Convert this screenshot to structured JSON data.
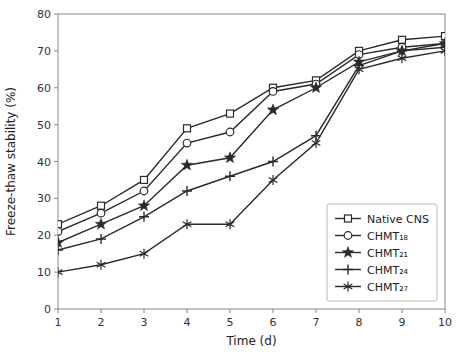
{
  "chart_data": {
    "type": "line",
    "x": [
      1,
      2,
      3,
      4,
      5,
      6,
      7,
      8,
      9,
      10
    ],
    "series": [
      {
        "name": "Native CNS",
        "color": "#2a2a2a",
        "marker": "square",
        "values": [
          23,
          28,
          35,
          49,
          53,
          60,
          62,
          70,
          73,
          74
        ]
      },
      {
        "name": "CHMT₁₈",
        "color": "#2a2a2a",
        "marker": "circle",
        "values": [
          21,
          26,
          32,
          45,
          48,
          59,
          61,
          69,
          71,
          72
        ]
      },
      {
        "name": "CHMT₂₁",
        "color": "#2a2a2a",
        "marker": "star",
        "values": [
          18,
          23,
          28,
          39,
          41,
          54,
          60,
          67,
          70,
          72
        ]
      },
      {
        "name": "CHMT₂₄",
        "color": "#2a2a2a",
        "marker": "plus",
        "values": [
          16,
          19,
          25,
          32,
          36,
          40,
          47,
          66,
          70,
          71
        ]
      },
      {
        "name": "CHMT₂₇",
        "color": "#2a2a2a",
        "marker": "asterisk",
        "values": [
          10,
          12,
          15,
          23,
          23,
          35,
          45,
          65,
          68,
          70
        ]
      }
    ],
    "xlabel": "Time (d)",
    "ylabel": "Freeze-thaw stability (%)",
    "xlim": [
      1,
      10
    ],
    "ylim": [
      0,
      80
    ],
    "xticks": [
      1,
      2,
      3,
      4,
      5,
      6,
      7,
      8,
      9,
      10
    ],
    "yticks": [
      0,
      10,
      20,
      30,
      40,
      50,
      60,
      70,
      80
    ],
    "grid": false,
    "legend": "lower right"
  }
}
